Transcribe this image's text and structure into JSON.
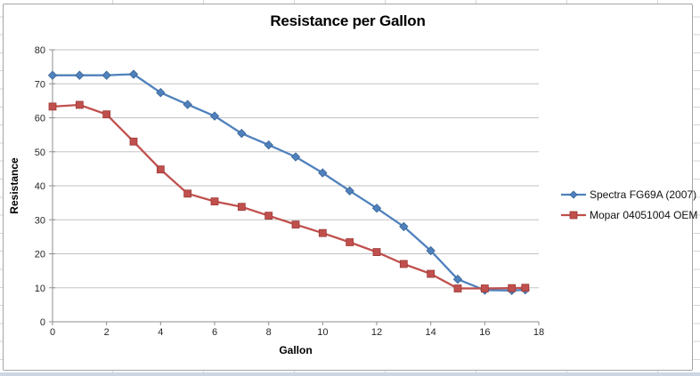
{
  "chart_data": {
    "type": "line",
    "title": "Resistance per Gallon",
    "xlabel": "Gallon",
    "ylabel": "Resistance",
    "xlim": [
      0,
      18
    ],
    "ylim": [
      0,
      80
    ],
    "x_tick_step": 2,
    "y_tick_step": 10,
    "grid": "horizontal",
    "legend_position": "right",
    "x": [
      0,
      1,
      2,
      3,
      4,
      5,
      6,
      7,
      8,
      9,
      10,
      11,
      12,
      13,
      14,
      15,
      16,
      17,
      17.5
    ],
    "series": [
      {
        "name": "Spectra FG69A (2007)",
        "marker": "diamond",
        "color": "#4F81BD",
        "edge_color": "#3A6496",
        "values": [
          72.5,
          72.5,
          72.5,
          72.8,
          67.4,
          63.9,
          60.5,
          55.4,
          52.0,
          48.5,
          43.8,
          38.5,
          33.4,
          28.0,
          20.9,
          12.5,
          9.3,
          9.2,
          9.4
        ]
      },
      {
        "name": "Mopar 04051004 OEM",
        "marker": "square",
        "color": "#C0504D",
        "edge_color": "#9C3A38",
        "values": [
          63.3,
          63.8,
          61.0,
          53.0,
          44.8,
          37.7,
          35.4,
          33.8,
          31.2,
          28.6,
          26.1,
          23.4,
          20.5,
          17.0,
          14.1,
          9.8,
          9.8,
          9.9,
          10.0
        ]
      }
    ],
    "colors": {
      "gridline": "#c3c3c3",
      "axis": "#8e8e8e",
      "tick_label": "#262626",
      "title_text": "#000000",
      "chart_border": "#a6a6a6",
      "sheet_gridline": "#d6d6d6",
      "sheet_bottom_strip": "#ccd6e2"
    }
  }
}
